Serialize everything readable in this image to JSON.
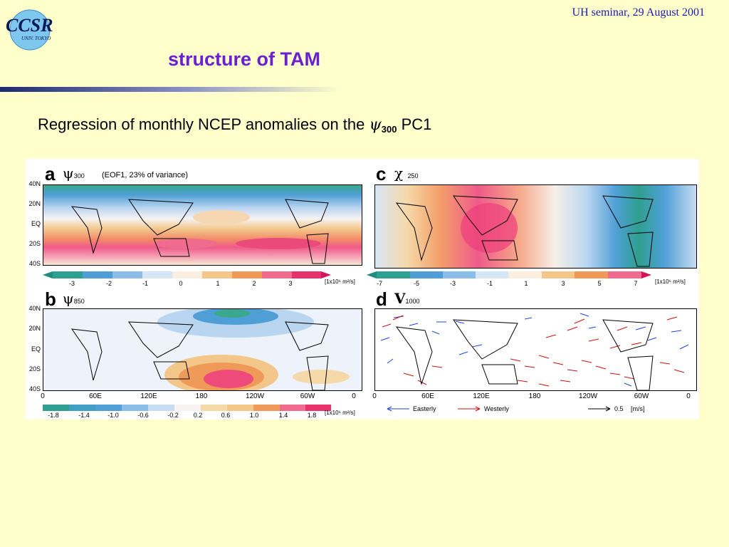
{
  "header": {
    "logo_text": "CCSR",
    "logo_subtext": "UNIV. TOKYO",
    "event": "UH seminar, 29 August 2001"
  },
  "slide": {
    "title": "structure of TAM",
    "subtitle_prefix": "Regression of monthly NCEP anomalies on the ",
    "subtitle_psi": "ψ",
    "subtitle_sub": "300",
    "subtitle_suffix": " PC1"
  },
  "figure": {
    "lat_labels": [
      "40N",
      "20N",
      "EQ",
      "20S",
      "40S"
    ],
    "lon_labels": [
      "0",
      "60E",
      "120E",
      "180",
      "120W",
      "60W",
      "0"
    ],
    "panel_a": {
      "letter": "a",
      "var": "ψ",
      "sub": "300",
      "note": "(EOF1, 23% of variance)",
      "ticks": [
        "-3",
        "-2",
        "-1",
        "0",
        "1",
        "2",
        "3"
      ],
      "unit": "[1x10⁶ m²/s]"
    },
    "panel_b": {
      "letter": "b",
      "var": "ψ",
      "sub": "850",
      "ticks": [
        "-1.8",
        "-1.4",
        "-1.0",
        "-0.6",
        "-0.2",
        "0.2",
        "0.6",
        "1.0",
        "1.4",
        "1.8"
      ],
      "unit": "[1x10⁶ m²/s]"
    },
    "panel_c": {
      "letter": "c",
      "var": "χ",
      "sub": "250",
      "ticks": [
        "-7",
        "-5",
        "-3",
        "-1",
        "1",
        "3",
        "5",
        "7"
      ],
      "unit": "[1x10⁶ m²/s]"
    },
    "panel_d": {
      "letter": "d",
      "var": "V",
      "sub": "1000",
      "easterly": "Easterly",
      "westerly": "Westerly",
      "ref_value": "0.5",
      "ref_unit": "[m/s]"
    }
  },
  "colors": {
    "background": "#ffffcc",
    "title": "#6a1fd0",
    "header_text": "#1a1aa8",
    "easterly_vector": "#2244dd",
    "westerly_vector": "#cc1111"
  }
}
